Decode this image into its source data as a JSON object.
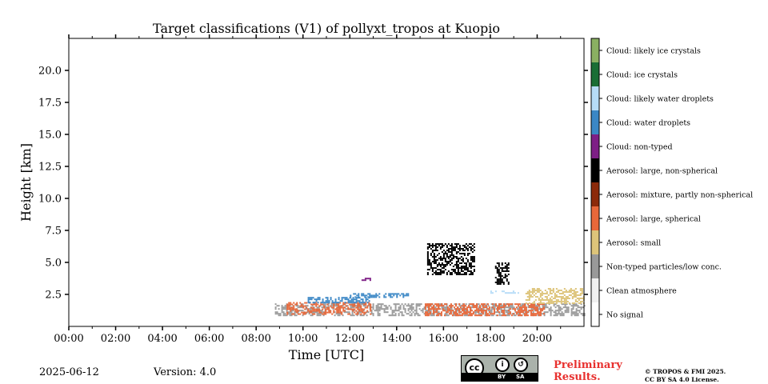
{
  "chart_data": {
    "type": "heatmap",
    "title": "Target classifications (V1) of pollyxt_tropos at Kuopio",
    "xlabel": "Time [UTC]",
    "ylabel": "Height [km]",
    "x_range_hours": [
      0,
      22
    ],
    "y_range_km": [
      0,
      22.5
    ],
    "x_ticks": [
      "00:00",
      "02:00",
      "04:00",
      "06:00",
      "08:00",
      "10:00",
      "12:00",
      "14:00",
      "16:00",
      "18:00",
      "20:00"
    ],
    "y_ticks": [
      "2.5",
      "5.0",
      "7.5",
      "10.0",
      "12.5",
      "15.0",
      "17.5",
      "20.0"
    ],
    "classes": [
      {
        "label": "No signal",
        "color": "#ffffff"
      },
      {
        "label": "Clean atmosphere",
        "color": "#f0f0f0"
      },
      {
        "label": "Non-typed particles/low conc.",
        "color": "#999999"
      },
      {
        "label": "Aerosol: small",
        "color": "#ddc47a"
      },
      {
        "label": "Aerosol: large, spherical",
        "color": "#e8683a"
      },
      {
        "label": "Aerosol: mixture, partly non-spherical",
        "color": "#8c2a0a"
      },
      {
        "label": "Aerosol: large, non-spherical",
        "color": "#000000"
      },
      {
        "label": "Cloud: non-typed",
        "color": "#7e1f86"
      },
      {
        "label": "Cloud: water droplets",
        "color": "#3b87c5"
      },
      {
        "label": "Cloud: likely water droplets",
        "color": "#b6dcf7"
      },
      {
        "label": "Cloud: ice crystals",
        "color": "#1a6e35"
      },
      {
        "label": "Cloud: likely ice crystals",
        "color": "#8ab062"
      }
    ],
    "regions": [
      {
        "class": "Non-typed particles/low conc.",
        "t_start": 8.8,
        "t_end": 22.0,
        "h_start": 0.9,
        "h_end": 1.8
      },
      {
        "class": "Aerosol: large, spherical",
        "t_start": 9.3,
        "t_end": 12.9,
        "h_start": 0.9,
        "h_end": 1.9
      },
      {
        "class": "Aerosol: large, spherical",
        "t_start": 15.2,
        "t_end": 20.3,
        "h_start": 0.9,
        "h_end": 1.8
      },
      {
        "class": "Aerosol: small",
        "t_start": 19.5,
        "t_end": 22.0,
        "h_start": 1.8,
        "h_end": 3.0
      },
      {
        "class": "Cloud: water droplets",
        "t_start": 10.2,
        "t_end": 12.8,
        "h_start": 1.8,
        "h_end": 2.3
      },
      {
        "class": "Cloud: water droplets",
        "t_start": 12.0,
        "t_end": 14.5,
        "h_start": 2.3,
        "h_end": 2.6
      },
      {
        "class": "Cloud: non-typed",
        "t_start": 12.5,
        "t_end": 12.9,
        "h_start": 3.6,
        "h_end": 3.8
      },
      {
        "class": "Aerosol: large, non-spherical",
        "t_start": 15.3,
        "t_end": 17.3,
        "h_start": 4.0,
        "h_end": 6.5
      },
      {
        "class": "Aerosol: large, non-spherical",
        "t_start": 18.2,
        "t_end": 18.8,
        "h_start": 3.3,
        "h_end": 5.0
      },
      {
        "class": "Cloud: likely water droplets",
        "t_start": 18.0,
        "t_end": 19.2,
        "h_start": 2.6,
        "h_end": 2.8
      }
    ]
  },
  "footer": {
    "date": "2025-06-12",
    "version": "Version: 4.0",
    "preliminary_line1": "Preliminary",
    "preliminary_line2": "Results.",
    "copyright_line1": "© TROPOS & FMI 2025.",
    "copyright_line2": "CC BY SA 4.0 License.",
    "cc": "cc",
    "cc_by": "BY",
    "cc_sa": "SA",
    "cc_by_icon": "i",
    "cc_sa_icon": "↺"
  }
}
